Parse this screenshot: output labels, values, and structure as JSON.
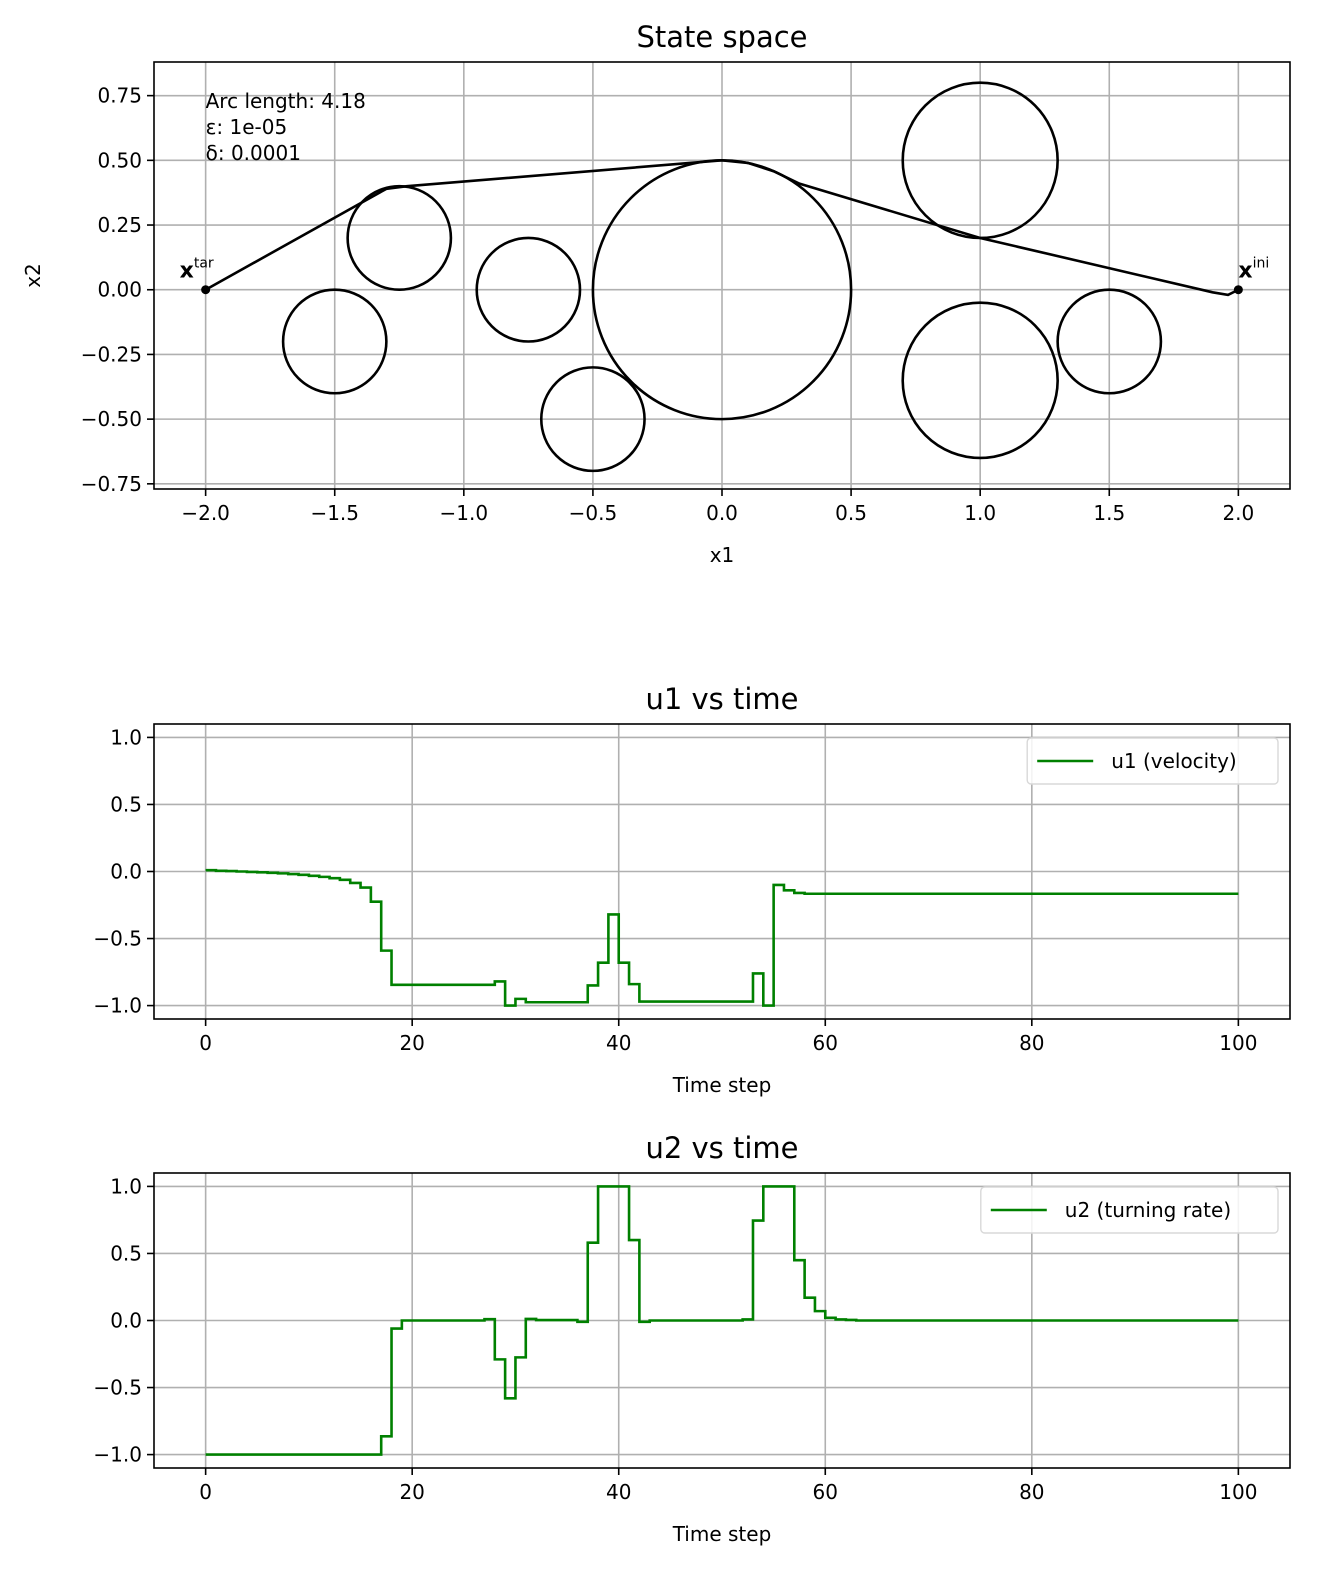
{
  "chart_data": [
    {
      "type": "line",
      "title": "State space",
      "xlabel": "x1",
      "ylabel": "x2",
      "xlim": [
        -2.2,
        2.2
      ],
      "ylim": [
        -0.77,
        0.88
      ],
      "grid": true,
      "xticks": [
        -2.0,
        -1.5,
        -1.0,
        -0.5,
        0.0,
        0.5,
        1.0,
        1.5,
        2.0
      ],
      "xtick_labels": [
        "−2.0",
        "−1.5",
        "−1.0",
        "−0.5",
        "0.0",
        "0.5",
        "1.0",
        "1.5",
        "2.0"
      ],
      "yticks": [
        0.75,
        0.5,
        0.25,
        0.0,
        -0.25,
        -0.5,
        -0.75
      ],
      "ytick_labels": [
        "0.75",
        "0.50",
        "0.25",
        "0.00",
        "−0.25",
        "−0.50",
        "−0.75"
      ],
      "annotations": [
        "Arc length: 4.18",
        "ε: 1e-05",
        "δ: 0.0001"
      ],
      "obstacles": [
        {
          "cx": 0.0,
          "cy": 0.0,
          "r": 0.5
        },
        {
          "cx": 1.0,
          "cy": 0.5,
          "r": 0.3
        },
        {
          "cx": 1.0,
          "cy": -0.35,
          "r": 0.3
        },
        {
          "cx": 1.5,
          "cy": -0.2,
          "r": 0.2
        },
        {
          "cx": -0.5,
          "cy": -0.5,
          "r": 0.2
        },
        {
          "cx": -0.75,
          "cy": 0.0,
          "r": 0.2
        },
        {
          "cx": -1.25,
          "cy": 0.2,
          "r": 0.2
        },
        {
          "cx": -1.5,
          "cy": -0.2,
          "r": 0.2
        }
      ],
      "path": [
        [
          2.0,
          0.0
        ],
        [
          1.96,
          -0.02
        ],
        [
          1.9,
          -0.01
        ],
        [
          1.0,
          0.2
        ],
        [
          0.3,
          0.41
        ],
        [
          0.2,
          0.458
        ],
        [
          0.1,
          0.49
        ],
        [
          0.0,
          0.5
        ],
        [
          -1.22,
          0.4
        ],
        [
          -1.3,
          0.39
        ],
        [
          -2.0,
          0.0
        ]
      ],
      "points": [
        {
          "label_base": "x",
          "label_sup": "ini",
          "x": 2.0,
          "y": 0.0
        },
        {
          "label_base": "x",
          "label_sup": "tar",
          "x": -2.0,
          "y": 0.0
        }
      ],
      "color": "#000000"
    },
    {
      "type": "line",
      "title": "u1 vs time",
      "xlabel": "Time step",
      "ylabel": "",
      "xlim": [
        -5,
        105
      ],
      "ylim": [
        -1.1,
        1.1
      ],
      "grid": true,
      "legend": "top-right",
      "xticks": [
        0,
        20,
        40,
        60,
        80,
        100
      ],
      "xtick_labels": [
        "0",
        "20",
        "40",
        "60",
        "80",
        "100"
      ],
      "yticks": [
        1.0,
        0.5,
        0.0,
        -0.5,
        -1.0
      ],
      "ytick_labels": [
        "1.0",
        "0.5",
        "0.0",
        "−0.5",
        "−1.0"
      ],
      "series": [
        {
          "name": "u1 (velocity)",
          "color": "#008000",
          "steps": [
            [
              0,
              0.01
            ],
            [
              1,
              0.005
            ],
            [
              2,
              0.003
            ],
            [
              3,
              0.0
            ],
            [
              4,
              -0.003
            ],
            [
              5,
              -0.006
            ],
            [
              6,
              -0.01
            ],
            [
              7,
              -0.014
            ],
            [
              8,
              -0.019
            ],
            [
              9,
              -0.025
            ],
            [
              10,
              -0.032
            ],
            [
              11,
              -0.04
            ],
            [
              12,
              -0.05
            ],
            [
              13,
              -0.062
            ],
            [
              14,
              -0.085
            ],
            [
              15,
              -0.12
            ],
            [
              16,
              -0.225
            ],
            [
              17,
              -0.59
            ],
            [
              18,
              -0.845
            ],
            [
              28,
              -0.82
            ],
            [
              29,
              -1.0
            ],
            [
              30,
              -0.95
            ],
            [
              31,
              -0.975
            ],
            [
              37,
              -0.85
            ],
            [
              38,
              -0.68
            ],
            [
              39,
              -0.32
            ],
            [
              40,
              -0.68
            ],
            [
              41,
              -0.84
            ],
            [
              42,
              -0.97
            ],
            [
              53,
              -0.76
            ],
            [
              54,
              -1.0
            ],
            [
              55,
              -0.1
            ],
            [
              56,
              -0.14
            ],
            [
              57,
              -0.16
            ],
            [
              58,
              -0.166
            ],
            [
              100,
              -0.166
            ]
          ]
        }
      ]
    },
    {
      "type": "line",
      "title": "u2 vs time",
      "xlabel": "Time step",
      "ylabel": "",
      "xlim": [
        -5,
        105
      ],
      "ylim": [
        -1.1,
        1.1
      ],
      "grid": true,
      "legend": "top-right",
      "xticks": [
        0,
        20,
        40,
        60,
        80,
        100
      ],
      "xtick_labels": [
        "0",
        "20",
        "40",
        "60",
        "80",
        "100"
      ],
      "yticks": [
        1.0,
        0.5,
        0.0,
        -0.5,
        -1.0
      ],
      "ytick_labels": [
        "1.0",
        "0.5",
        "0.0",
        "−0.5",
        "−1.0"
      ],
      "series": [
        {
          "name": "u2 (turning rate)",
          "color": "#008000",
          "steps": [
            [
              0,
              -1.0
            ],
            [
              17,
              -0.864
            ],
            [
              18,
              -0.06
            ],
            [
              19,
              0.0
            ],
            [
              27,
              0.01
            ],
            [
              28,
              -0.29
            ],
            [
              29,
              -0.58
            ],
            [
              30,
              -0.275
            ],
            [
              31,
              0.012
            ],
            [
              32,
              0.003
            ],
            [
              36,
              -0.01
            ],
            [
              37,
              0.58
            ],
            [
              38,
              1.0
            ],
            [
              41,
              0.6
            ],
            [
              42,
              -0.01
            ],
            [
              43,
              0.0
            ],
            [
              52,
              0.008
            ],
            [
              53,
              0.745
            ],
            [
              54,
              1.0
            ],
            [
              57,
              0.45
            ],
            [
              58,
              0.17
            ],
            [
              59,
              0.07
            ],
            [
              60,
              0.02
            ],
            [
              61,
              0.008
            ],
            [
              62,
              0.004
            ],
            [
              63,
              0.0
            ],
            [
              100,
              0.0
            ]
          ]
        }
      ]
    }
  ]
}
